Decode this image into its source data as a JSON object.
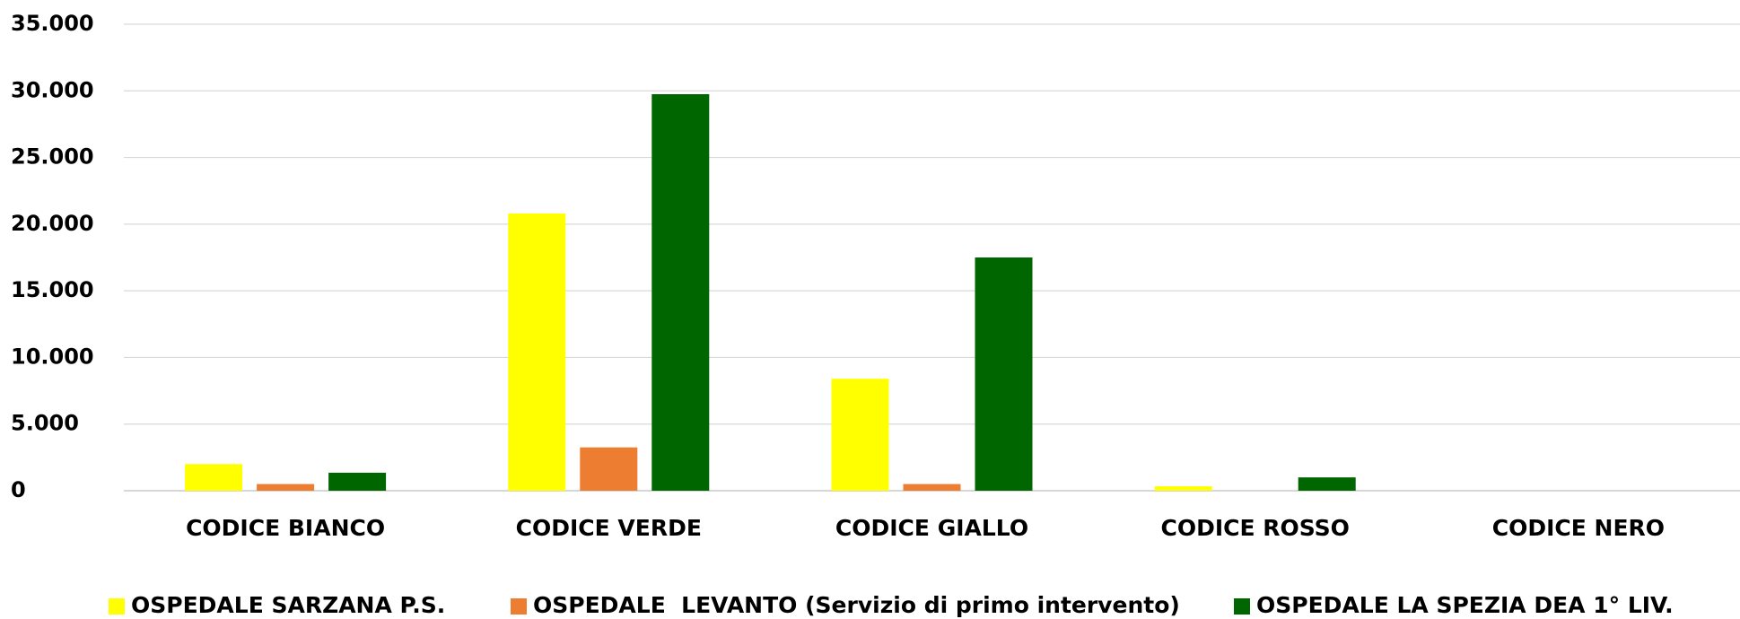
{
  "chart_data": {
    "type": "bar",
    "categories": [
      "CODICE BIANCO",
      "CODICE VERDE",
      "CODICE GIALLO",
      "CODICE ROSSO",
      "CODICE NERO"
    ],
    "series": [
      {
        "name": "OSPEDALE SARZANA P.S.",
        "color": "#ffff00",
        "values": [
          2000,
          20800,
          8400,
          330,
          0
        ]
      },
      {
        "name": "OSPEDALE  LEVANTO (Servizio di primo intervento)",
        "color": "#ed7d31",
        "values": [
          500,
          3250,
          500,
          0,
          0
        ]
      },
      {
        "name": "OSPEDALE LA SPEZIA DEA 1° LIV.",
        "color": "#006600",
        "values": [
          1350,
          29750,
          17500,
          1000,
          0
        ]
      }
    ],
    "ylim": [
      0,
      35000
    ],
    "yticks": [
      0,
      {
        "value": 5000,
        "label": "5.000"
      },
      {
        "value": 10000,
        "label": "10.000"
      },
      {
        "value": 15000,
        "label": "15.000"
      },
      {
        "value": 20000,
        "label": "20.000"
      },
      {
        "value": 25000,
        "label": "25.000"
      },
      {
        "value": 30000,
        "label": "30.000"
      },
      {
        "value": 35000,
        "label": "35.000"
      }
    ],
    "grid": true,
    "legend": "bottom"
  }
}
